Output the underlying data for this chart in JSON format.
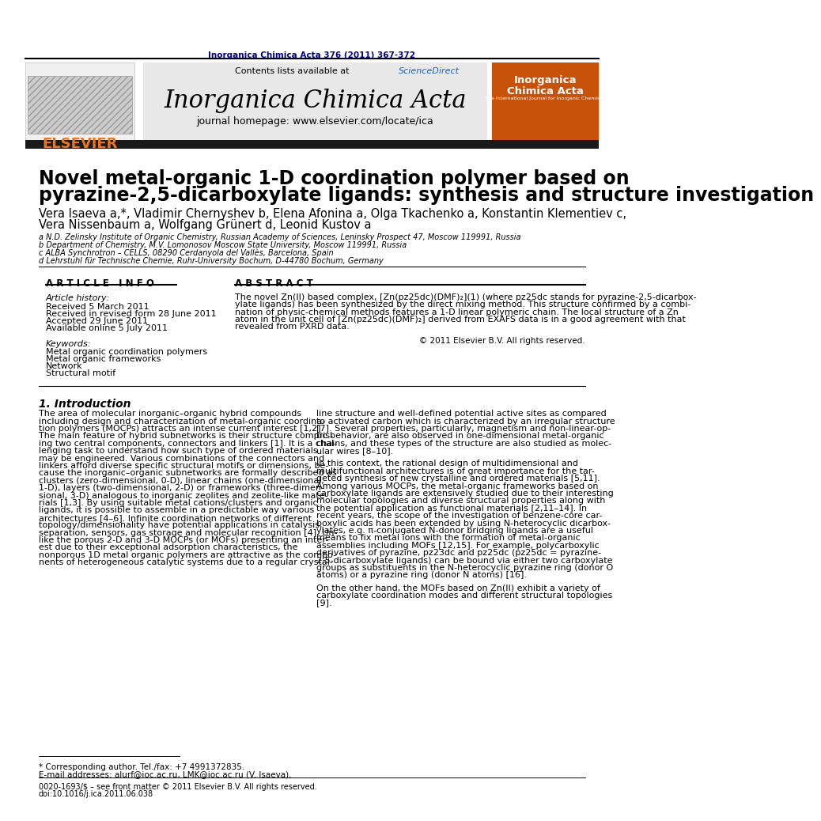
{
  "journal_ref": "Inorganica Chimica Acta 376 (2011) 367-372",
  "journal_name": "Inorganica Chimica Acta",
  "journal_homepage": "journal homepage: www.elsevier.com/locate/ica",
  "contents_line": "Contents lists available at ScienceDirect",
  "elsevier_text": "ELSEVIER",
  "title_line1": "Novel metal-organic 1-D coordination polymer based on",
  "title_line2": "pyrazine-2,5-dicarboxylate ligands: synthesis and structure investigation",
  "authors": "Vera Isaeva a,*, Vladimir Chernyshev b, Elena Afonina a, Olga Tkachenko a, Konstantin Klementiev c,",
  "authors2": "Vera Nissenbaum a, Wolfgang Grünert d, Leonid Kustov a",
  "affil_a": "a N.D. Zelinsky Institute of Organic Chemistry, Russian Academy of Sciences, Leninsky Prospect 47, Moscow 119991, Russia",
  "affil_b": "b Department of Chemistry, M.V. Lomonosov Moscow State University, Moscow 119991, Russia",
  "affil_c": "c ALBA Synchrotron – CELLS, 08290 Cerdanyola del Vallès, Barcelona, Spain",
  "affil_d": "d Lehrstuhl für Technische Chemie, Ruhr-University Bochum, D-44780 Bochum, Germany",
  "article_info_header": "A R T I C L E   I N F O",
  "abstract_header": "A B S T R A C T",
  "article_history_label": "Article history:",
  "received": "Received 5 March 2011",
  "revised": "Received in revised form 28 June 2011",
  "accepted": "Accepted 29 June 2011",
  "available": "Available online 5 July 2011",
  "keywords_label": "Keywords:",
  "kw1": "Metal organic coordination polymers",
  "kw2": "Metal organic frameworks",
  "kw3": "Network",
  "kw4": "Structural motif",
  "copyright": "© 2011 Elsevier B.V. All rights reserved.",
  "intro_header": "1. Introduction",
  "footnote_star": "* Corresponding author. Tel./fax: +7 4991372835.",
  "footnote_email": "E-mail addresses: alurf@ioc.ac.ru, LMK@ioc.ac.ru (V. Isaeva).",
  "footer_issn": "0020-1693/$ – see front matter © 2011 Elsevier B.V. All rights reserved.",
  "footer_doi": "doi:10.1016/j.ica.2011.06.038",
  "bg_color": "#ffffff",
  "dark_navy": "#00008B",
  "elsevier_orange": "#E87722",
  "science_direct_blue": "#1565C0",
  "cover_orange": "#C8520A"
}
